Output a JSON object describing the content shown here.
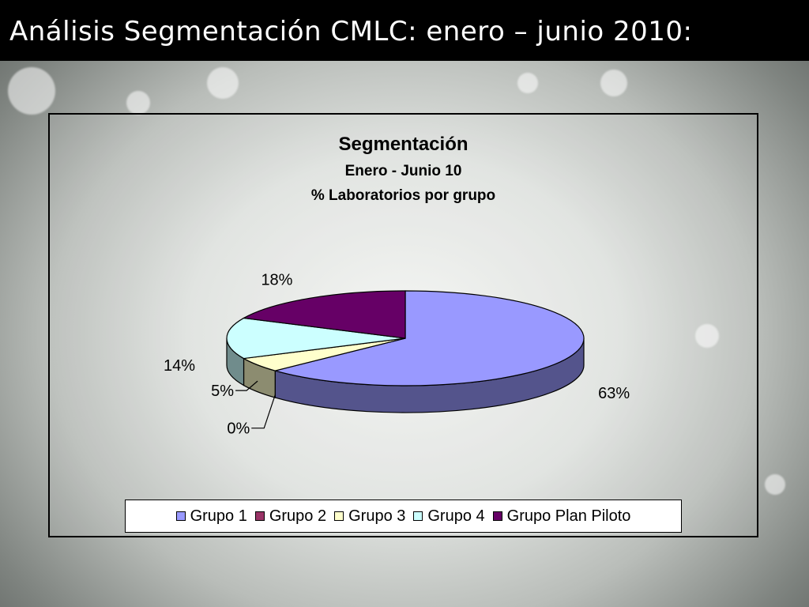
{
  "slide": {
    "title": "Análisis Segmentación CMLC: enero – junio 2010:"
  },
  "chart_data": {
    "type": "pie",
    "title": "Segmentación",
    "subtitle": "Enero - Junio 10",
    "subtitle2": "% Laboratorios por grupo",
    "categories": [
      "Grupo 1",
      "Grupo 2",
      "Grupo 3",
      "Grupo 4",
      "Grupo Plan Piloto"
    ],
    "values": [
      63,
      0,
      5,
      14,
      18
    ],
    "data_labels": [
      "63%",
      "0%",
      "5%",
      "14%",
      "18%"
    ],
    "colors": [
      "#9999ff",
      "#993366",
      "#ffffcc",
      "#ccffff",
      "#660066"
    ],
    "legend_position": "bottom",
    "three_d": true
  }
}
